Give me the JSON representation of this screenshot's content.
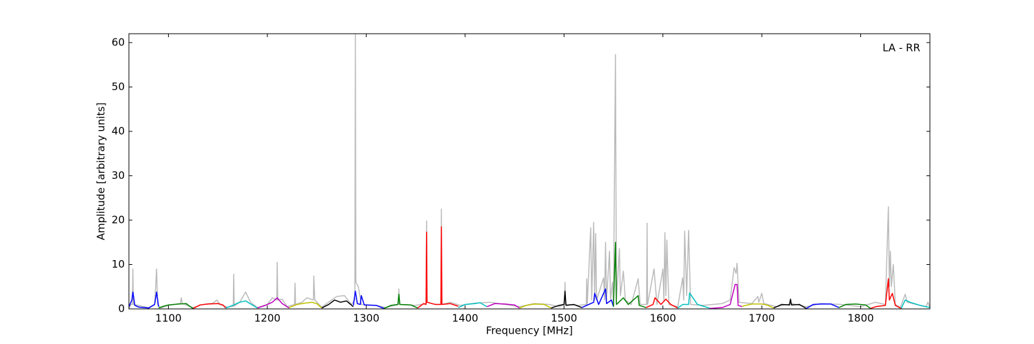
{
  "chart_data": {
    "type": "line",
    "xlabel": "Frequency [MHz]",
    "ylabel": "Amplitude [arbitrary units]",
    "annotation": "LA - RR",
    "xlim": [
      1060,
      1870
    ],
    "ylim": [
      0,
      62
    ],
    "xticks": [
      1100,
      1200,
      1300,
      1400,
      1500,
      1600,
      1700,
      1800
    ],
    "yticks": [
      0,
      10,
      20,
      30,
      40,
      50,
      60
    ],
    "grid": false,
    "series": [
      {
        "color": "#bbbbbb",
        "x": [
          1060,
          1062,
          1063.5,
          1064,
          1064.5,
          1070,
          1075,
          1080,
          1086,
          1088,
          1089,
          1092,
          1100,
          1112,
          1113,
          1114,
          1125,
          1135,
          1145,
          1149,
          1152,
          1160,
          1165.5,
          1166,
          1166.5,
          1172,
          1178,
          1183,
          1190,
          1200,
          1205,
          1209.5,
          1210,
          1210.5,
          1215,
          1220,
          1227.5,
          1228,
          1228.5,
          1235,
          1240,
          1246.5,
          1247,
          1248,
          1255,
          1265,
          1270,
          1278,
          1285,
          1288.5,
          1289,
          1289.5,
          1292,
          1295,
          1310,
          1320,
          1332.5,
          1333,
          1333.5,
          1350,
          1360.5,
          1361,
          1361.5,
          1370,
          1375.5,
          1376,
          1376.5,
          1385,
          1395,
          1410,
          1425,
          1440,
          1455,
          1470,
          1485,
          1495,
          1500.5,
          1501,
          1501.5,
          1515,
          1522.5,
          1523,
          1523.5,
          1527,
          1528,
          1530,
          1531,
          1532,
          1533,
          1540,
          1541,
          1542,
          1543,
          1546,
          1547,
          1549,
          1550,
          1552,
          1553,
          1556,
          1557,
          1560,
          1562,
          1568,
          1575,
          1577,
          1583.5,
          1584,
          1584.5,
          1591,
          1594,
          1600,
          1601,
          1602,
          1603,
          1604,
          1606,
          1615,
          1620,
          1621,
          1622,
          1624,
          1626,
          1628,
          1640,
          1660,
          1668,
          1672,
          1674,
          1675,
          1677,
          1690,
          1696,
          1697,
          1700,
          1702,
          1715,
          1730,
          1745,
          1760,
          1780,
          1800,
          1815,
          1825,
          1828,
          1829,
          1830,
          1831,
          1833,
          1835,
          1840,
          1845,
          1847,
          1860,
          1866,
          1868,
          1870
        ],
        "values": [
          0,
          1,
          1,
          9,
          1,
          0.8,
          0.5,
          0.3,
          1,
          9,
          1,
          0.2,
          0.8,
          1.2,
          2.5,
          1.2,
          0.3,
          1,
          1.3,
          2,
          1,
          0.4,
          0.6,
          7.8,
          0.6,
          1.5,
          3.8,
          1.5,
          0.3,
          1,
          2.5,
          2,
          10.5,
          2,
          2.2,
          0.5,
          1,
          5.8,
          1,
          1.5,
          2.5,
          2,
          7.4,
          2,
          0.4,
          2,
          2.8,
          3,
          1,
          2,
          62,
          6,
          5,
          1,
          0.8,
          0.3,
          1,
          4.5,
          1,
          0.8,
          1.2,
          19.8,
          1.5,
          1,
          1,
          22.5,
          1,
          1.5,
          0.8,
          1.3,
          1.5,
          1,
          0.5,
          1.2,
          1,
          0.5,
          1,
          6,
          1,
          0.8,
          1,
          6.8,
          1,
          18.3,
          2,
          19.5,
          2,
          17,
          2,
          7,
          2,
          15,
          2,
          13,
          2,
          6,
          1,
          57.3,
          2,
          13.6,
          3,
          8.5,
          2,
          1,
          6.8,
          1,
          1,
          19.3,
          1,
          9,
          1,
          9,
          2,
          17.2,
          3,
          15.5,
          1,
          0.5,
          7,
          2,
          17.5,
          3,
          17.7,
          1,
          0.8,
          1.2,
          2,
          9.3,
          8,
          10.3,
          1.5,
          1.2,
          2.8,
          1.5,
          3.5,
          1.2,
          0.5,
          1.2,
          0.5,
          1.2,
          1,
          0.5,
          1.5,
          1,
          23,
          5,
          13,
          5,
          10,
          1,
          0.3,
          3.3,
          1.5,
          0.8,
          0.5,
          1.5,
          0.3
        ]
      },
      {
        "color": "#0000ff",
        "x": [
          1060,
          1063,
          1064,
          1066,
          1070,
          1080,
          1086,
          1088,
          1090
        ],
        "values": [
          0.5,
          2,
          3.8,
          0.8,
          0.4,
          0.2,
          1,
          3.8,
          0.5
        ]
      },
      {
        "color": "#008000",
        "x": [
          1090,
          1095,
          1100,
          1110,
          1118,
          1122,
          1125
        ],
        "values": [
          0.2,
          0.6,
          0.9,
          1.1,
          1.2,
          0.5,
          0.1
        ]
      },
      {
        "color": "#ff0000",
        "x": [
          1125,
          1132,
          1140,
          1150,
          1155,
          1158
        ],
        "values": [
          0.1,
          0.9,
          1.1,
          1.2,
          0.9,
          0.2
        ]
      },
      {
        "color": "#00bfbf",
        "x": [
          1158,
          1165,
          1172,
          1178,
          1184,
          1190
        ],
        "values": [
          0.2,
          0.8,
          1.5,
          1.8,
          1,
          0.2
        ]
      },
      {
        "color": "#bf00bf",
        "x": [
          1190,
          1198,
          1205,
          1210,
          1215,
          1222
        ],
        "values": [
          0.2,
          0.8,
          1.5,
          2.5,
          1.2,
          0.2
        ]
      },
      {
        "color": "#bfbf00",
        "x": [
          1222,
          1230,
          1238,
          1245,
          1250,
          1255
        ],
        "values": [
          0.3,
          1,
          1.3,
          1.5,
          1.2,
          0.2
        ]
      },
      {
        "color": "#000000",
        "x": [
          1255,
          1262,
          1268,
          1274,
          1280,
          1287
        ],
        "values": [
          0.2,
          1,
          2,
          1.5,
          1.8,
          0.5
        ]
      },
      {
        "color": "#0000ff",
        "x": [
          1287,
          1289,
          1291,
          1294,
          1295,
          1298,
          1310,
          1318
        ],
        "values": [
          0.8,
          4,
          1.2,
          1,
          3,
          0.9,
          0.8,
          0.1
        ]
      },
      {
        "color": "#008000",
        "x": [
          1318,
          1325,
          1332,
          1333,
          1334,
          1345,
          1352
        ],
        "values": [
          0.1,
          0.8,
          1,
          3.3,
          1,
          0.9,
          0.2
        ]
      },
      {
        "color": "#ff0000",
        "x": [
          1352,
          1358,
          1360.5,
          1361,
          1361.5,
          1370,
          1375.5,
          1376,
          1376.5,
          1385,
          1393
        ],
        "values": [
          0.2,
          1.2,
          1,
          17.3,
          1.5,
          1,
          1,
          18.5,
          1,
          1.2,
          0.6
        ]
      },
      {
        "color": "#00bfbf",
        "x": [
          1393,
          1400,
          1410,
          1415,
          1422
        ],
        "values": [
          0.3,
          1,
          1.2,
          1.4,
          0.5
        ]
      },
      {
        "color": "#bf00bf",
        "x": [
          1422,
          1430,
          1440,
          1450,
          1455
        ],
        "values": [
          0.5,
          1.2,
          1.1,
          0.9,
          0.2
        ]
      },
      {
        "color": "#bfbf00",
        "x": [
          1455,
          1462,
          1470,
          1480,
          1487
        ],
        "values": [
          0.2,
          0.8,
          1.1,
          1,
          0.2
        ]
      },
      {
        "color": "#000000",
        "x": [
          1487,
          1495,
          1500,
          1501,
          1502,
          1510,
          1518
        ],
        "values": [
          0.2,
          0.8,
          1,
          4,
          0.8,
          1,
          0.3
        ]
      },
      {
        "color": "#0000ff",
        "x": [
          1518,
          1525,
          1530,
          1531,
          1535,
          1542,
          1543,
          1548,
          1550
        ],
        "values": [
          0.3,
          1,
          1.5,
          3.5,
          1,
          4.5,
          1.2,
          2,
          0.5
        ]
      },
      {
        "color": "#008000",
        "x": [
          1550,
          1552,
          1553,
          1560,
          1565,
          1575,
          1576,
          1583
        ],
        "values": [
          0.5,
          15,
          1,
          2.5,
          1,
          3,
          0.8,
          0.3
        ]
      },
      {
        "color": "#ff0000",
        "x": [
          1583,
          1590,
          1592,
          1598,
          1603,
          1608,
          1615
        ],
        "values": [
          0.3,
          1,
          2.5,
          1,
          2.2,
          1,
          0.2
        ]
      },
      {
        "color": "#00bfbf",
        "x": [
          1615,
          1620,
          1626,
          1627,
          1635,
          1647
        ],
        "values": [
          0.2,
          1,
          1,
          3.6,
          1,
          0.2
        ]
      },
      {
        "color": "#bf00bf",
        "x": [
          1647,
          1660,
          1668,
          1673,
          1675,
          1676,
          1680
        ],
        "values": [
          0.1,
          0.3,
          1,
          5.5,
          5.5,
          0.8,
          0.5
        ]
      },
      {
        "color": "#bfbf00",
        "x": [
          1680,
          1690,
          1700,
          1705,
          1712
        ],
        "values": [
          0.6,
          1.1,
          1.1,
          0.9,
          0.2
        ]
      },
      {
        "color": "#000000",
        "x": [
          1712,
          1720,
          1728,
          1729,
          1730,
          1738,
          1745
        ],
        "values": [
          0.2,
          1,
          0.9,
          2.2,
          0.9,
          1,
          0.1
        ]
      },
      {
        "color": "#0000ff",
        "x": [
          1745,
          1752,
          1760,
          1770,
          1778
        ],
        "values": [
          0.1,
          1,
          1.1,
          1.1,
          0.3
        ]
      },
      {
        "color": "#008000",
        "x": [
          1778,
          1785,
          1795,
          1805,
          1810
        ],
        "values": [
          0.3,
          1,
          1.1,
          0.9,
          0.1
        ]
      },
      {
        "color": "#ff0000",
        "x": [
          1810,
          1815,
          1825,
          1828,
          1829,
          1832,
          1835,
          1841
        ],
        "values": [
          0.1,
          0.5,
          0.8,
          6.8,
          2,
          3.5,
          0.8,
          0.1
        ]
      },
      {
        "color": "#00bfbf",
        "x": [
          1841,
          1845,
          1850,
          1860,
          1870
        ],
        "values": [
          0.1,
          2,
          1.5,
          0.8,
          0.3
        ]
      }
    ]
  }
}
